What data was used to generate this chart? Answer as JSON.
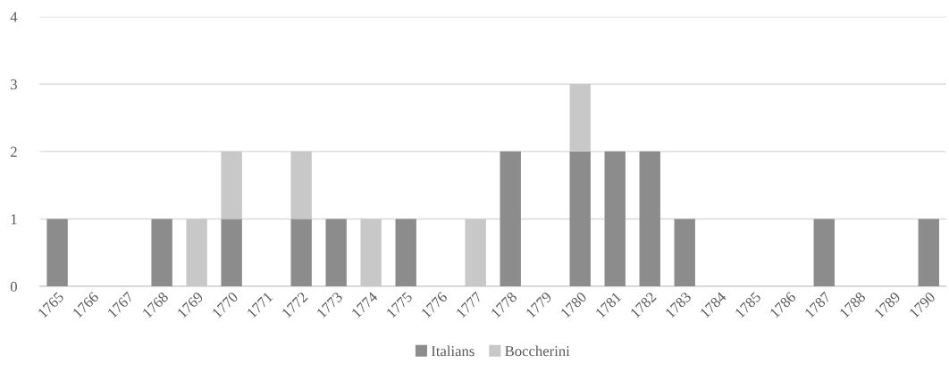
{
  "chart_data": {
    "type": "bar",
    "stacked": true,
    "categories": [
      "1765",
      "1766",
      "1767",
      "1768",
      "1769",
      "1770",
      "1771",
      "1772",
      "1773",
      "1774",
      "1775",
      "1776",
      "1777",
      "1778",
      "1779",
      "1780",
      "1781",
      "1782",
      "1783",
      "1784",
      "1785",
      "1786",
      "1787",
      "1788",
      "1789",
      "1790"
    ],
    "series": [
      {
        "name": "Italians",
        "color": "#8c8c8c",
        "values": [
          1,
          0,
          0,
          1,
          0,
          1,
          0,
          1,
          1,
          0,
          1,
          0,
          0,
          2,
          0,
          2,
          2,
          2,
          1,
          0,
          0,
          0,
          1,
          0,
          0,
          1
        ]
      },
      {
        "name": "Boccherini",
        "color": "#c8c8c8",
        "values": [
          0,
          0,
          0,
          0,
          1,
          1,
          0,
          1,
          0,
          1,
          0,
          0,
          1,
          0,
          0,
          1,
          0,
          0,
          0,
          0,
          0,
          0,
          0,
          0,
          0,
          0
        ]
      }
    ],
    "ylim": [
      0,
      4
    ],
    "yticks": [
      0,
      1,
      2,
      3,
      4
    ],
    "grid": "y",
    "legend": "bottom"
  }
}
